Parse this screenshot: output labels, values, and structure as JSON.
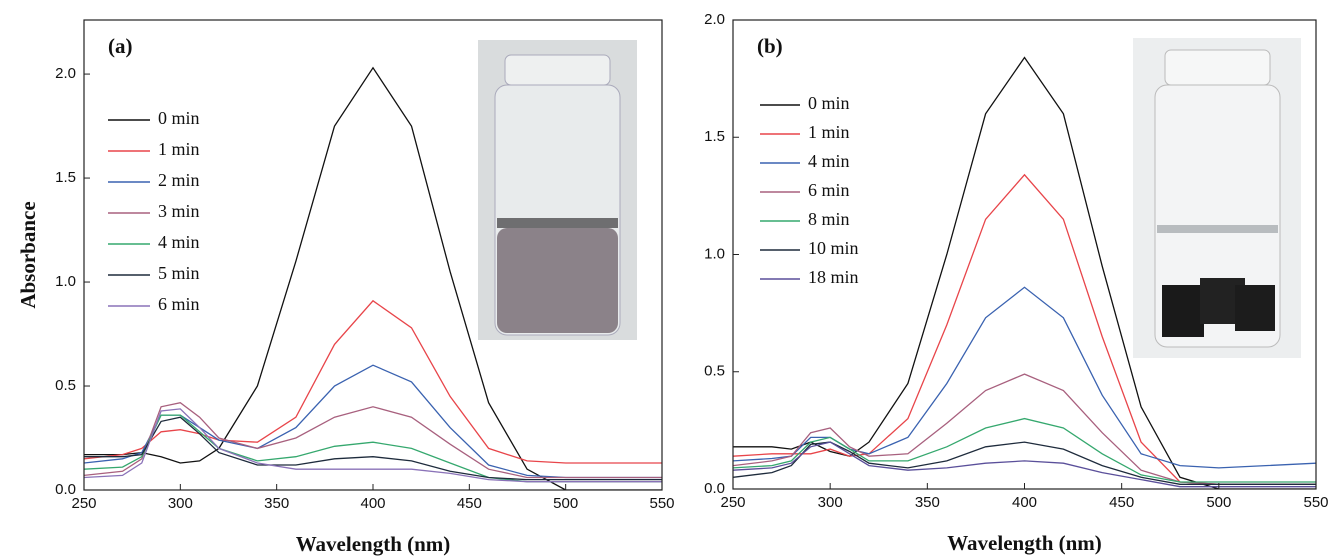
{
  "chart_data": [
    {
      "type": "line",
      "panel_label": "(a)",
      "x_label": "Wavelength (nm)",
      "y_label": "Absorbance",
      "x": [
        250,
        270,
        280,
        290,
        300,
        310,
        320,
        340,
        360,
        380,
        400,
        420,
        440,
        460,
        480,
        500,
        550
      ],
      "xlim": [
        250,
        550
      ],
      "xticks": [
        250,
        300,
        350,
        400,
        450,
        500,
        550
      ],
      "ylim": [
        0,
        2.26
      ],
      "yticks": [
        {
          "value": 0,
          "label": "0.0"
        },
        0.5,
        {
          "value": 1,
          "label": "1.0"
        },
        1.5,
        {
          "value": 2,
          "label": "2.0"
        }
      ],
      "legend": "upper left",
      "series": [
        {
          "name": "0 min",
          "color": "#111111",
          "values": [
            0.17,
            0.17,
            0.18,
            0.16,
            0.13,
            0.14,
            0.2,
            0.5,
            1.1,
            1.75,
            2.03,
            1.75,
            1.05,
            0.42,
            0.1,
            0.0,
            0.0
          ]
        },
        {
          "name": "1 min",
          "color": "#e8454a",
          "values": [
            0.15,
            0.17,
            0.2,
            0.28,
            0.29,
            0.27,
            0.24,
            0.23,
            0.35,
            0.7,
            0.91,
            0.78,
            0.45,
            0.2,
            0.14,
            0.13,
            0.13
          ]
        },
        {
          "name": "2 min",
          "color": "#3a62b0",
          "values": [
            0.13,
            0.15,
            0.18,
            0.36,
            0.36,
            0.3,
            0.24,
            0.2,
            0.3,
            0.5,
            0.6,
            0.52,
            0.3,
            0.12,
            0.07,
            0.06,
            0.06
          ]
        },
        {
          "name": "3 min",
          "color": "#a8607e",
          "values": [
            0.07,
            0.09,
            0.15,
            0.4,
            0.42,
            0.35,
            0.25,
            0.2,
            0.25,
            0.35,
            0.4,
            0.35,
            0.22,
            0.1,
            0.06,
            0.06,
            0.06
          ]
        },
        {
          "name": "4 min",
          "color": "#35a86e",
          "values": [
            0.1,
            0.11,
            0.16,
            0.36,
            0.36,
            0.28,
            0.2,
            0.14,
            0.16,
            0.21,
            0.23,
            0.2,
            0.13,
            0.06,
            0.04,
            0.04,
            0.04
          ]
        },
        {
          "name": "5 min",
          "color": "#1e2b3c",
          "values": [
            0.16,
            0.16,
            0.17,
            0.33,
            0.35,
            0.27,
            0.18,
            0.12,
            0.12,
            0.15,
            0.16,
            0.14,
            0.09,
            0.06,
            0.05,
            0.05,
            0.05
          ]
        },
        {
          "name": "6 min",
          "color": "#8a72b8",
          "values": [
            0.06,
            0.07,
            0.13,
            0.38,
            0.39,
            0.3,
            0.2,
            0.13,
            0.1,
            0.1,
            0.1,
            0.1,
            0.08,
            0.05,
            0.04,
            0.04,
            0.04
          ]
        }
      ]
    },
    {
      "type": "line",
      "panel_label": "(b)",
      "x_label": "Wavelength (nm)",
      "x": [
        250,
        270,
        280,
        290,
        300,
        310,
        320,
        340,
        360,
        380,
        400,
        420,
        440,
        460,
        480,
        500,
        550
      ],
      "xlim": [
        250,
        550
      ],
      "xticks": [
        250,
        300,
        350,
        400,
        450,
        500,
        550
      ],
      "ylim": [
        0,
        2.0
      ],
      "yticks": [
        {
          "value": 0,
          "label": "0.0"
        },
        0.5,
        {
          "value": 1,
          "label": "1.0"
        },
        1.5,
        {
          "value": 2,
          "label": "2.0"
        }
      ],
      "legend": "upper left",
      "series": [
        {
          "name": "0 min",
          "color": "#111111",
          "values": [
            0.18,
            0.18,
            0.17,
            0.2,
            0.16,
            0.14,
            0.2,
            0.45,
            1.0,
            1.6,
            1.84,
            1.6,
            0.95,
            0.35,
            0.05,
            0.0,
            0.0
          ]
        },
        {
          "name": "1 min",
          "color": "#e8454a",
          "values": [
            0.14,
            0.15,
            0.15,
            0.15,
            0.17,
            0.14,
            0.15,
            0.3,
            0.7,
            1.15,
            1.34,
            1.15,
            0.65,
            0.2,
            0.03,
            0.02,
            0.02
          ]
        },
        {
          "name": "4 min",
          "color": "#3a62b0",
          "values": [
            0.12,
            0.13,
            0.14,
            0.22,
            0.22,
            0.17,
            0.15,
            0.22,
            0.45,
            0.73,
            0.86,
            0.73,
            0.4,
            0.15,
            0.1,
            0.09,
            0.11
          ]
        },
        {
          "name": "6 min",
          "color": "#a8607e",
          "values": [
            0.1,
            0.12,
            0.14,
            0.24,
            0.26,
            0.18,
            0.14,
            0.15,
            0.28,
            0.42,
            0.49,
            0.42,
            0.24,
            0.08,
            0.03,
            0.02,
            0.02
          ]
        },
        {
          "name": "8 min",
          "color": "#35a86e",
          "values": [
            0.09,
            0.1,
            0.12,
            0.2,
            0.22,
            0.17,
            0.12,
            0.12,
            0.18,
            0.26,
            0.3,
            0.26,
            0.15,
            0.06,
            0.03,
            0.03,
            0.03
          ]
        },
        {
          "name": "10 min",
          "color": "#1e2b3c",
          "values": [
            0.05,
            0.07,
            0.1,
            0.19,
            0.2,
            0.16,
            0.11,
            0.09,
            0.12,
            0.18,
            0.2,
            0.17,
            0.1,
            0.05,
            0.02,
            0.02,
            0.02
          ]
        },
        {
          "name": "18 min",
          "color": "#5a4f9a",
          "values": [
            0.08,
            0.09,
            0.11,
            0.18,
            0.2,
            0.15,
            0.1,
            0.08,
            0.09,
            0.11,
            0.12,
            0.11,
            0.07,
            0.04,
            0.01,
            0.01,
            0.01
          ]
        }
      ]
    }
  ]
}
